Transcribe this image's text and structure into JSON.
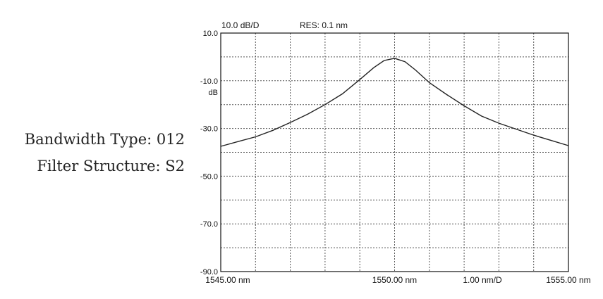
{
  "labels": {
    "bandwidth_type": "Bandwidth Type: 012",
    "filter_structure": "Filter Structure: S2"
  },
  "chart_data": {
    "type": "line",
    "header": {
      "scale": "10.0 dB/D",
      "resolution": "RES: 0.1 nm"
    },
    "y_unit": "dB",
    "x_span_label": "1.00 nm/D",
    "ylim": [
      -90,
      10
    ],
    "xlim": [
      1545,
      1555
    ],
    "y_tick_labels": [
      {
        "value": 10,
        "label": "10.0"
      },
      {
        "value": -10,
        "label": "-10.0"
      },
      {
        "value": -30,
        "label": "-30.0"
      },
      {
        "value": -50,
        "label": "-50.0"
      },
      {
        "value": -70,
        "label": "-70.0"
      },
      {
        "value": -90,
        "label": "-90.0"
      }
    ],
    "x_tick_labels": [
      {
        "value": 1545,
        "label": "1545.00 nm"
      },
      {
        "value": 1550,
        "label": "1550.00 nm"
      },
      {
        "value": 1555,
        "label": "1555.00 nm"
      }
    ],
    "grid": true,
    "series": [
      {
        "x": [
          1545,
          1545.5,
          1546,
          1546.5,
          1547,
          1547.5,
          1548,
          1548.5,
          1549,
          1549.4,
          1549.7,
          1550,
          1550.3,
          1550.6,
          1551,
          1551.5,
          1552,
          1552.5,
          1553,
          1553.5,
          1554,
          1554.5,
          1555
        ],
        "y": [
          -37.5,
          -35.5,
          -33.5,
          -30.8,
          -27.5,
          -24,
          -20,
          -15.5,
          -9.5,
          -4.5,
          -1.5,
          -0.6,
          -2,
          -5.5,
          -10.8,
          -15.8,
          -20.5,
          -24.8,
          -27.8,
          -30.3,
          -32.8,
          -35,
          -37.2
        ]
      }
    ]
  }
}
